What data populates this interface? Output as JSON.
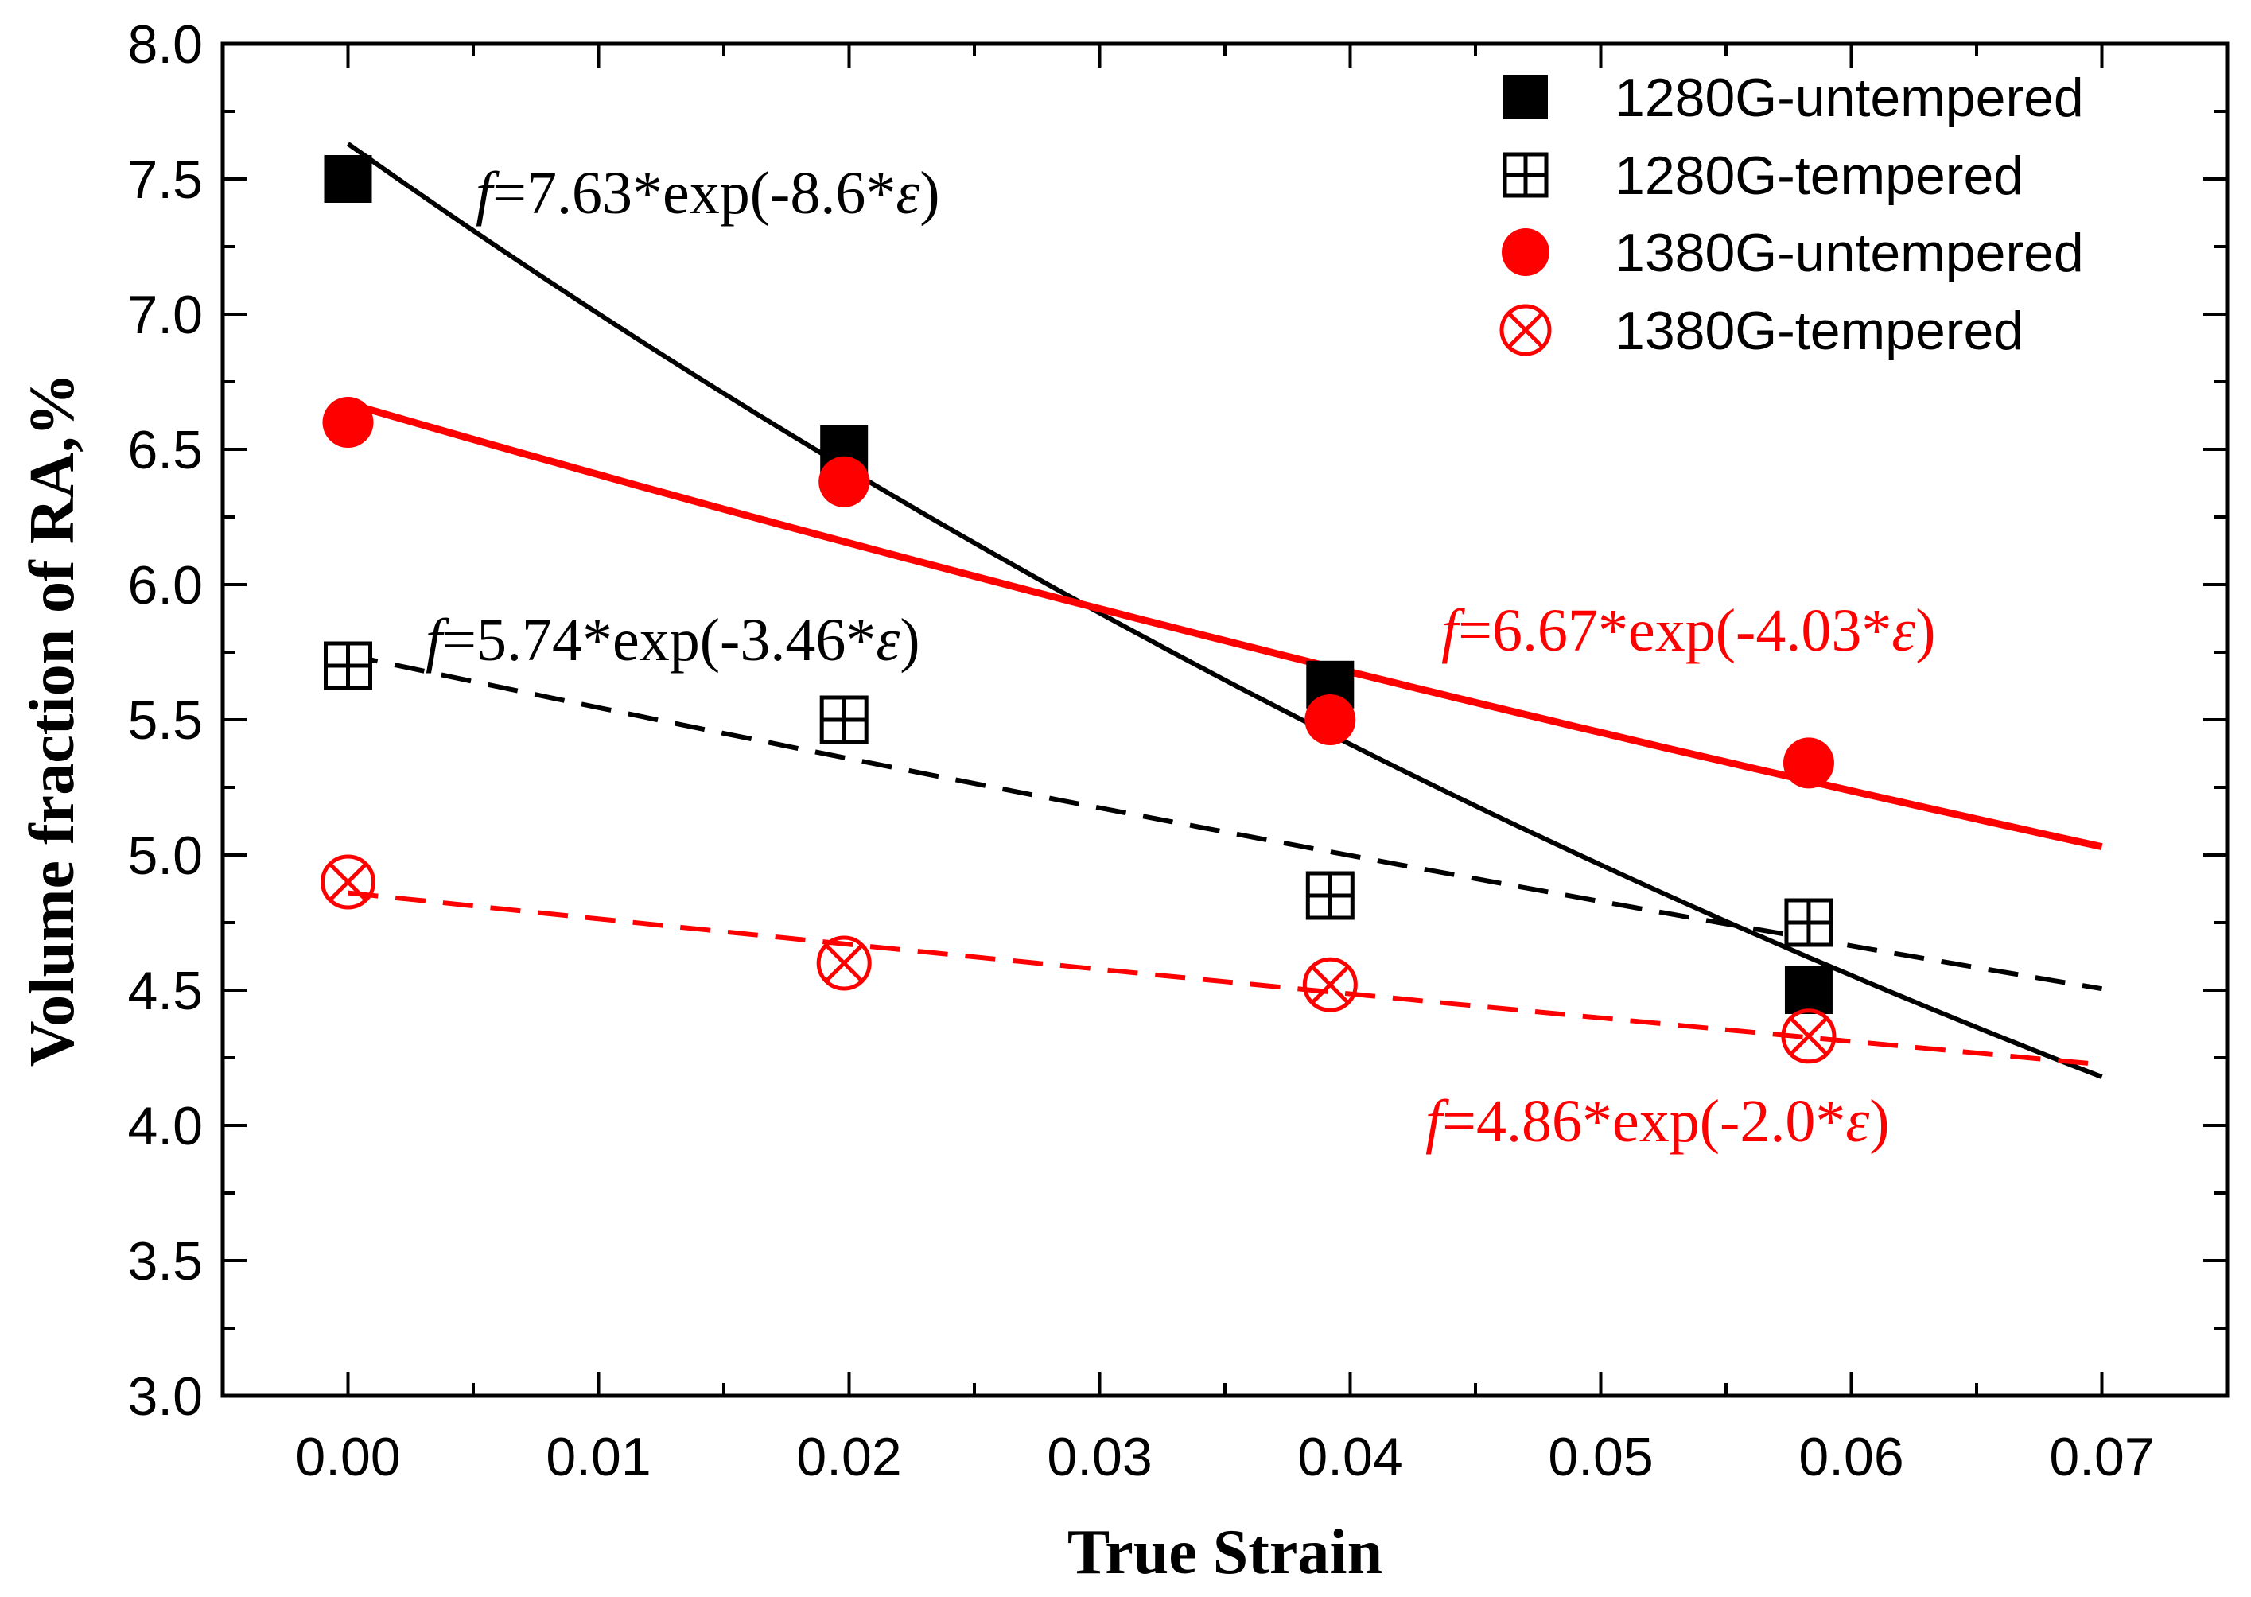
{
  "chart_data": {
    "type": "scatter",
    "title": "",
    "xlabel": "True Strain",
    "ylabel": "Volume fraction of RA,%",
    "xlim": [
      -0.005,
      0.075
    ],
    "ylim": [
      3.0,
      8.0
    ],
    "x_ticks": [
      "0.00",
      "0.01",
      "0.02",
      "0.03",
      "0.04",
      "0.05",
      "0.06",
      "0.07"
    ],
    "y_ticks": [
      "3.0",
      "3.5",
      "4.0",
      "4.5",
      "5.0",
      "5.5",
      "6.0",
      "6.5",
      "7.0",
      "7.5",
      "8.0"
    ],
    "legend_position": "top-right",
    "series": [
      {
        "name": "1280G-untempered",
        "marker": "filled-square",
        "color": "#000000",
        "x": [
          0.0,
          0.0198,
          0.0392,
          0.0583
        ],
        "y": [
          7.5,
          6.5,
          5.63,
          4.5
        ],
        "fit": {
          "label": "f=7.63*exp(-8.6*ε)",
          "a": 7.63,
          "b": -8.6,
          "x_range": [
            0.0,
            0.07
          ],
          "style": "solid"
        }
      },
      {
        "name": "1280G-tempered",
        "marker": "boxed-plus",
        "color": "#000000",
        "x": [
          0.0,
          0.0198,
          0.0392,
          0.0583
        ],
        "y": [
          5.7,
          5.5,
          4.85,
          4.75
        ],
        "fit": {
          "label": "f=5.74*exp(-3.46*ε)",
          "a": 5.74,
          "b": -3.46,
          "x_range": [
            0.0,
            0.07
          ],
          "style": "dashed"
        }
      },
      {
        "name": "1380G-untempered",
        "marker": "filled-circle",
        "color": "#ff0000",
        "x": [
          0.0,
          0.0198,
          0.0392,
          0.0583
        ],
        "y": [
          6.6,
          6.38,
          5.5,
          5.34
        ],
        "fit": {
          "label": "f=6.67*exp(-4.03*ε)",
          "a": 6.67,
          "b": -4.03,
          "x_range": [
            0.0,
            0.07
          ],
          "style": "solid"
        }
      },
      {
        "name": "1380G-tempered",
        "marker": "circle-x",
        "color": "#ff0000",
        "x": [
          0.0,
          0.0198,
          0.0392,
          0.0583
        ],
        "y": [
          4.9,
          4.6,
          4.52,
          4.33
        ],
        "fit": {
          "label": "f=4.86*exp(-2.0*ε)",
          "a": 4.86,
          "b": -2.0,
          "x_range": [
            0.0,
            0.07
          ],
          "style": "dashed"
        }
      }
    ],
    "annotations": [
      {
        "series": 0,
        "f": "f",
        "rest": "=7.63*exp(-8.6*",
        "var": "ε",
        "close": ")",
        "color": "#000000"
      },
      {
        "series": 1,
        "f": "f",
        "rest": "=5.74*exp(-3.46*",
        "var": "ε",
        "close": ")",
        "color": "#000000"
      },
      {
        "series": 2,
        "f": "f",
        "rest": "=6.67*exp(-4.03*",
        "var": "ε",
        "close": ")",
        "color": "#ff0000"
      },
      {
        "series": 3,
        "f": "f",
        "rest": "=4.86*exp(-2.0*",
        "var": "ε",
        "close": ")",
        "color": "#ff0000"
      }
    ]
  }
}
